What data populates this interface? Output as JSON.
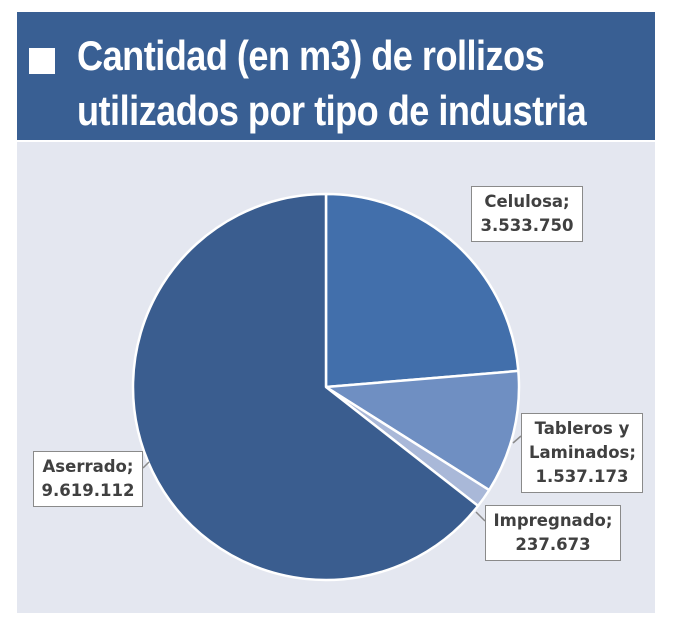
{
  "header": {
    "title_line1": "Cantidad (en m3) de rollizos",
    "title_line2": "utilizados por tipo de industria"
  },
  "colors": {
    "header_bg": "#395f93",
    "plot_bg": "#e4e7f0",
    "celulosa": "#426fab",
    "tableros": "#6f8fc2",
    "impregnado": "#a9b8d8",
    "aserrado": "#3a5d8f"
  },
  "chart_data": {
    "type": "pie",
    "start_angle_deg": 0,
    "direction": "clockwise",
    "slices": [
      {
        "label": "Celulosa;",
        "value": 3533750,
        "value_label": "3.533.750"
      },
      {
        "label": "Tableros y Laminados;",
        "label_line1": "Tableros y",
        "label_line2": "Laminados;",
        "value": 1537173,
        "value_label": "1.537.173"
      },
      {
        "label": "Impregnado;",
        "value": 237673,
        "value_label": "237.673"
      },
      {
        "label": "Aserrado;",
        "value": 9619112,
        "value_label": "9.619.112"
      }
    ]
  }
}
